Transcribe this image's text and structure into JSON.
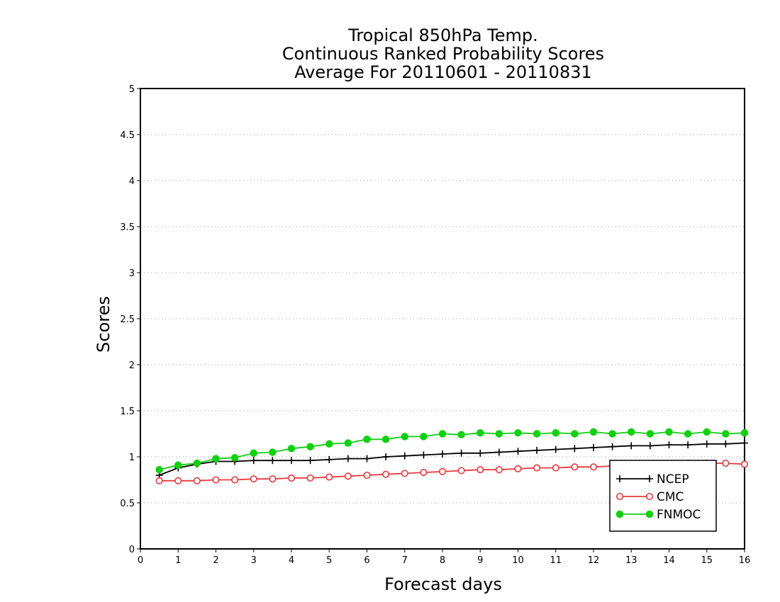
{
  "chart_data": {
    "type": "line",
    "title": [
      "Tropical 850hPa Temp.",
      "Continuous Ranked Probability Scores",
      "Average For 20110601 - 20110831"
    ],
    "xlabel": "Forecast days",
    "ylabel": "Scores",
    "xlim": [
      0,
      16
    ],
    "ylim": [
      0,
      5
    ],
    "xticks": [
      0,
      1,
      2,
      3,
      4,
      5,
      6,
      7,
      8,
      9,
      10,
      11,
      12,
      13,
      14,
      15,
      16
    ],
    "yticks": [
      0,
      0.5,
      1,
      1.5,
      2,
      2.5,
      3,
      3.5,
      4,
      4.5,
      5
    ],
    "ytick_labels": [
      "0",
      "0.5",
      "1",
      "1.5",
      "2",
      "2.5",
      "3",
      "3.5",
      "4",
      "4.5",
      "5"
    ],
    "grid": "horizontal dotted",
    "legend_position": "bottom-right",
    "x": [
      0.5,
      1,
      1.5,
      2,
      2.5,
      3,
      3.5,
      4,
      4.5,
      5,
      5.5,
      6,
      6.5,
      7,
      7.5,
      8,
      8.5,
      9,
      9.5,
      10,
      10.5,
      11,
      11.5,
      12,
      12.5,
      13,
      13.5,
      14,
      14.5,
      15,
      15.5,
      16
    ],
    "series": [
      {
        "name": "NCEP",
        "color": "#000000",
        "marker": "plus",
        "values": [
          0.8,
          0.88,
          0.92,
          0.95,
          0.95,
          0.96,
          0.96,
          0.96,
          0.96,
          0.97,
          0.98,
          0.98,
          1.0,
          1.01,
          1.02,
          1.03,
          1.04,
          1.04,
          1.05,
          1.06,
          1.07,
          1.08,
          1.09,
          1.1,
          1.11,
          1.12,
          1.12,
          1.13,
          1.13,
          1.14,
          1.14,
          1.15
        ]
      },
      {
        "name": "CMC",
        "color": "#e8383c",
        "marker": "open-circle",
        "values": [
          0.74,
          0.74,
          0.74,
          0.75,
          0.75,
          0.76,
          0.76,
          0.77,
          0.77,
          0.78,
          0.79,
          0.8,
          0.81,
          0.82,
          0.83,
          0.84,
          0.85,
          0.86,
          0.86,
          0.87,
          0.88,
          0.88,
          0.89,
          0.89,
          0.9,
          0.9,
          0.91,
          0.92,
          0.93,
          0.93,
          0.93,
          0.92
        ]
      },
      {
        "name": "FNMOC",
        "color": "#10d010",
        "marker": "filled-circle",
        "values": [
          0.86,
          0.91,
          0.93,
          0.98,
          0.99,
          1.04,
          1.05,
          1.09,
          1.11,
          1.14,
          1.15,
          1.19,
          1.19,
          1.22,
          1.22,
          1.25,
          1.24,
          1.26,
          1.25,
          1.26,
          1.25,
          1.26,
          1.25,
          1.27,
          1.25,
          1.27,
          1.25,
          1.27,
          1.25,
          1.27,
          1.25,
          1.26
        ]
      }
    ]
  }
}
